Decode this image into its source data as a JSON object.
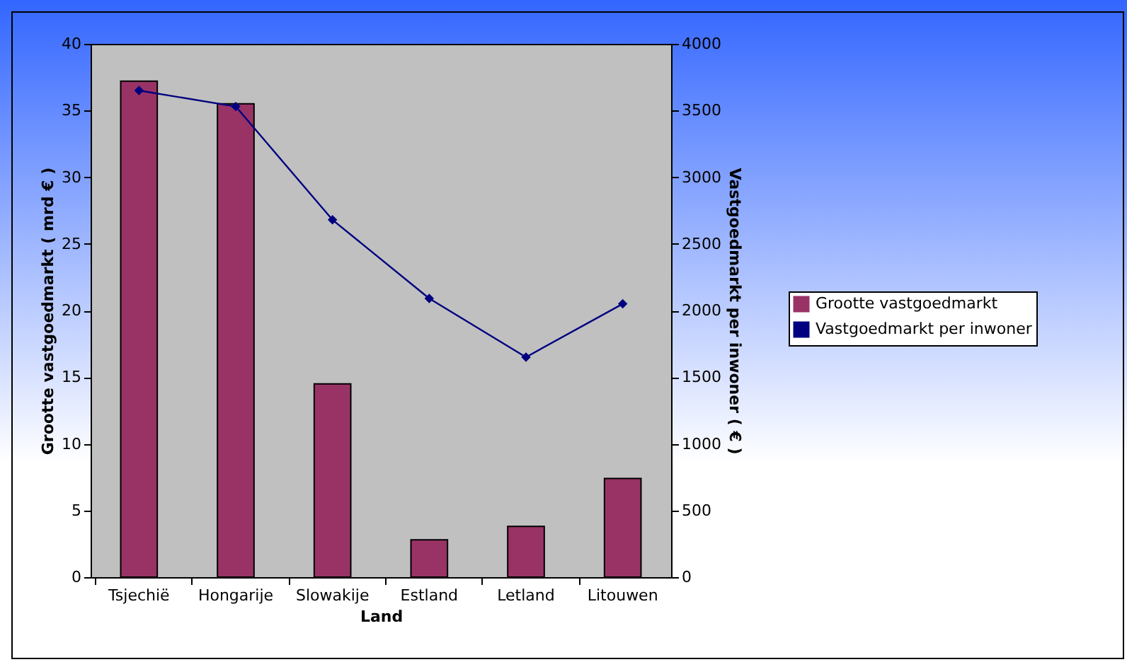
{
  "chart_data": {
    "type": "bar",
    "xlabel": "Land",
    "ylabel": "Grootte vastgoedmarkt ( mrd € )",
    "y2label": "Vastgoedmarkt per inwoner ( € )",
    "categories": [
      "Tsjechië",
      "Hongarije",
      "Slowakije",
      "Estland",
      "Letland",
      "Litouwen"
    ],
    "series": [
      {
        "name": "Grootte vastgoedmarkt",
        "color": "#993366",
        "values": [
          37.2,
          35.5,
          14.5,
          2.8,
          3.8,
          7.4
        ]
      },
      {
        "name": "Vastgoedmarkt per inwoner",
        "type": "line",
        "axis": "y2",
        "color": "#000080",
        "values": [
          3650,
          3530,
          2680,
          2090,
          1650,
          2050
        ]
      }
    ],
    "ylim": [
      0,
      40
    ],
    "yticks": [
      0,
      5,
      10,
      15,
      20,
      25,
      30,
      35,
      40
    ],
    "y2lim": [
      0,
      4000
    ],
    "y2ticks": [
      0,
      500,
      1000,
      1500,
      2000,
      2500,
      3000,
      3500,
      4000
    ],
    "grid": false,
    "legend": "right",
    "marker": "diamond",
    "line_style": "solid"
  }
}
